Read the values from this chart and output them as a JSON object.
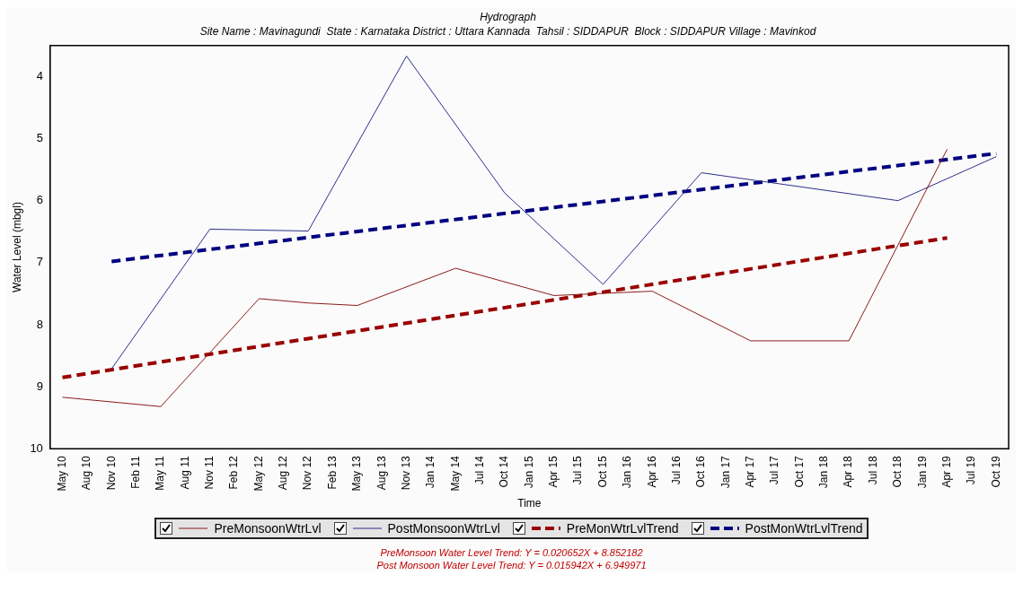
{
  "chart_data": {
    "type": "line",
    "title": "Hydrograph",
    "subtitle": "Site Name : Mavinagundi  State : Karnataka District : Uttara Kannada  Tahsil : SIDDAPUR  Block : SIDDAPUR Village : Mavinkod",
    "xlabel": "Time",
    "ylabel": "Water Level (mbgl)",
    "categories": [
      "May 10",
      "Aug 10",
      "Nov 10",
      "Feb 11",
      "May 11",
      "Aug 11",
      "Nov 11",
      "Feb 12",
      "May 12",
      "Aug 12",
      "Nov 12",
      "Feb 13",
      "May 13",
      "Aug 13",
      "Nov 13",
      "Jan 14",
      "May 14",
      "Jul 14",
      "Oct 14",
      "Jan 15",
      "Apr 15",
      "Jul 15",
      "Oct 15",
      "Jan 16",
      "Apr 16",
      "Jul 16",
      "Oct 16",
      "Jan 17",
      "Apr 17",
      "Jul 17",
      "Oct 17",
      "Jan 18",
      "Apr 18",
      "Jul 18",
      "Oct 18",
      "Jan 19",
      "Apr 19",
      "Jul 19",
      "Oct 19"
    ],
    "series": [
      {
        "name": "PreMonsoonWtrLvl",
        "color": "#8b1a1a",
        "line_style": "solid",
        "values": [
          9.17,
          null,
          null,
          null,
          9.32,
          null,
          null,
          null,
          7.58,
          null,
          7.65,
          null,
          7.69,
          null,
          null,
          null,
          7.09,
          null,
          null,
          null,
          7.53,
          null,
          null,
          null,
          7.46,
          null,
          null,
          null,
          8.26,
          null,
          null,
          null,
          8.26,
          null,
          null,
          null,
          5.17,
          null,
          null
        ]
      },
      {
        "name": "PostMonsoonWtrLvl",
        "color": "#2e2e8c",
        "line_style": "solid",
        "values": [
          null,
          null,
          8.71,
          null,
          null,
          null,
          6.46,
          null,
          null,
          null,
          6.49,
          null,
          null,
          null,
          3.67,
          null,
          null,
          null,
          5.88,
          null,
          null,
          null,
          7.35,
          null,
          null,
          null,
          5.55,
          null,
          null,
          null,
          null,
          null,
          null,
          null,
          6.0,
          null,
          null,
          null,
          5.29
        ]
      },
      {
        "name": "PreMonWtrLvlTrend",
        "color": "#990000",
        "line_style": "dashed",
        "values": [
          8.85,
          null,
          null,
          null,
          null,
          null,
          null,
          null,
          null,
          null,
          null,
          null,
          null,
          null,
          null,
          null,
          null,
          null,
          null,
          null,
          null,
          null,
          null,
          null,
          null,
          null,
          null,
          null,
          null,
          null,
          null,
          null,
          null,
          null,
          null,
          null,
          6.6,
          null,
          null
        ]
      },
      {
        "name": "PostMonWtrLvlTrend",
        "color": "#000080",
        "line_style": "dashed",
        "values": [
          null,
          null,
          6.98,
          null,
          null,
          null,
          null,
          null,
          null,
          null,
          null,
          null,
          null,
          null,
          null,
          null,
          null,
          null,
          null,
          null,
          null,
          null,
          null,
          null,
          null,
          null,
          null,
          null,
          null,
          null,
          null,
          null,
          null,
          null,
          null,
          null,
          null,
          null,
          5.24
        ]
      }
    ],
    "ylim": [
      10,
      3.5
    ],
    "yticks": [
      4,
      5,
      6,
      7,
      8,
      9,
      10
    ],
    "grid": false,
    "marker": "none",
    "legend": "bottom",
    "annotations": [
      "PreMonsoon Water Level Trend: Y = 0.020652X + 8.852182",
      "Post Monsoon Water Level Trend: Y = 0.015942X + 6.949971"
    ]
  }
}
